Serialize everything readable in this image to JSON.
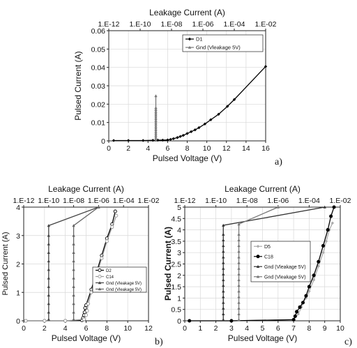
{
  "chart_data": [
    {
      "type": "line",
      "panel_label": "a)",
      "xlabel": "Pulsed Voltage (V)",
      "ylabel": "Pulsed Current (A)",
      "top_label": "Leakage Current (A)",
      "xlim": [
        0,
        16
      ],
      "ylim": [
        0,
        0.06
      ],
      "x_ticks": [
        "0",
        "2",
        "4",
        "6",
        "8",
        "10",
        "12",
        "14",
        "16"
      ],
      "y_ticks": [
        "0",
        "0.01",
        "0.02",
        "0.03",
        "0.04",
        "0.05",
        "0.06"
      ],
      "top_ticks": [
        "1.E-12",
        "1.E-10",
        "1.E-08",
        "1.E-06",
        "1.E-04",
        "1.E-02"
      ],
      "top_exp_range": [
        -12,
        -2
      ],
      "legend": {
        "placement": "top-right"
      },
      "series": [
        {
          "name": "D1",
          "axis": "bottom",
          "color": "#000000",
          "marker": "diamond",
          "x": [
            0.5,
            2.0,
            3.5,
            4.5,
            5.0,
            5.5,
            6.0,
            6.3,
            6.6,
            7.0,
            7.3,
            7.6,
            8.0,
            8.4,
            8.8,
            9.2,
            9.8,
            10.4,
            11.2,
            12.1,
            12.8,
            16.0
          ],
          "y": [
            0.0002,
            0.0002,
            0.0002,
            0.0003,
            0.0004,
            0.0004,
            0.0005,
            0.0008,
            0.0012,
            0.0018,
            0.0024,
            0.003,
            0.004,
            0.005,
            0.006,
            0.0072,
            0.0092,
            0.0115,
            0.0145,
            0.0188,
            0.0225,
            0.0405
          ]
        },
        {
          "name": "Gnd (Vleakage 5V)",
          "axis": "top",
          "color": "#777777",
          "marker": "triangle",
          "x": [
            1e-09,
            1e-09,
            1e-09,
            1e-09,
            1e-09,
            1e-09,
            1e-09,
            1e-09,
            1e-09,
            1e-09,
            1e-09,
            1e-09,
            1e-09,
            1e-09,
            1e-09,
            1e-09,
            1e-09,
            1e-09,
            1e-09,
            1e-09
          ],
          "y": [
            0.0003,
            0.001,
            0.002,
            0.003,
            0.004,
            0.005,
            0.006,
            0.007,
            0.008,
            0.009,
            0.01,
            0.011,
            0.012,
            0.013,
            0.014,
            0.015,
            0.016,
            0.017,
            0.018,
            0.0245
          ]
        }
      ]
    },
    {
      "type": "line",
      "panel_label": "b)",
      "xlabel": "Pulsed Voltage (V)",
      "ylabel": "Pulsed Current (A)",
      "top_label": "Leakage Current (A)",
      "xlim": [
        0,
        12
      ],
      "ylim": [
        0,
        4
      ],
      "x_ticks": [
        "0",
        "2",
        "4",
        "6",
        "8",
        "10",
        "12"
      ],
      "y_ticks": [
        "0",
        "1",
        "2",
        "3",
        "4"
      ],
      "top_ticks": [
        "1.E-12",
        "1.E-10",
        "1.E-08",
        "1.E-06",
        "1.E-04",
        "1.E-02"
      ],
      "top_exp_range": [
        -12,
        -2
      ],
      "legend": {
        "placement": "bottom-right"
      },
      "series": [
        {
          "name": "D2",
          "axis": "bottom",
          "color": "#000000",
          "marker": "circle-open",
          "x": [
            0.2,
            2.0,
            4.0,
            5.6,
            5.7,
            5.8,
            5.85,
            5.9,
            6.0,
            6.5,
            7.0,
            7.5,
            8.0,
            8.5,
            8.8
          ],
          "y": [
            0.0,
            0.0,
            0.0,
            0.02,
            0.1,
            0.2,
            0.3,
            0.45,
            0.55,
            1.1,
            1.7,
            2.3,
            2.9,
            3.4,
            3.85
          ]
        },
        {
          "name": "C14",
          "axis": "bottom",
          "color": "#999999",
          "marker": "circle-open",
          "x": [
            0.2,
            2.0,
            4.0,
            5.8,
            6.0,
            6.1,
            6.2,
            6.5,
            7.0,
            7.5,
            8.0,
            8.5,
            8.9
          ],
          "y": [
            0.0,
            0.0,
            0.0,
            0.05,
            0.2,
            0.35,
            0.6,
            1.0,
            1.6,
            2.2,
            2.8,
            3.3,
            3.7
          ]
        },
        {
          "name": "Gnd (Vleakage 5V)",
          "axis": "top",
          "color": "#444444",
          "marker": "triangle",
          "x": [
            1e-10,
            1e-10,
            1e-10,
            1e-10,
            1e-10,
            1e-10,
            1e-10,
            1e-10,
            1e-10,
            1e-10,
            1e-10,
            1e-10,
            1e-06
          ],
          "y": [
            0.05,
            0.3,
            0.6,
            0.9,
            1.2,
            1.5,
            1.8,
            2.1,
            2.4,
            2.7,
            3.0,
            3.35,
            4.0
          ]
        },
        {
          "name": "Gnd (Vleakage 5V)",
          "axis": "top",
          "color": "#666666",
          "marker": "triangle",
          "x": [
            1e-08,
            1e-08,
            1e-08,
            1e-08,
            1e-08,
            1e-08,
            1e-08,
            1e-08,
            1e-08,
            1e-08,
            1e-08,
            1e-08,
            1e-06
          ],
          "y": [
            0.05,
            0.3,
            0.6,
            0.9,
            1.2,
            1.5,
            1.8,
            2.1,
            2.4,
            2.7,
            3.0,
            3.35,
            4.0
          ]
        }
      ]
    },
    {
      "type": "line",
      "panel_label": "c)",
      "xlabel": "Pulsed Voltage (V)",
      "ylabel": "Pulsed Current (A)",
      "top_label": "Leakage Current (A)",
      "xlim": [
        0,
        10
      ],
      "ylim": [
        0,
        5
      ],
      "x_ticks": [
        "0",
        "1",
        "2",
        "3",
        "4",
        "5",
        "6",
        "7",
        "8",
        "9",
        "10"
      ],
      "y_ticks": [
        "0",
        "0.5",
        "1",
        "1.5",
        "2",
        "2.5",
        "3",
        "3.5",
        "4",
        "4.5",
        "5"
      ],
      "top_ticks": [
        "1.E-12",
        "1.E-10",
        "1.E-08",
        "1.E-06",
        "1.E-04",
        "1.E-02"
      ],
      "top_exp_range": [
        -12,
        -2
      ],
      "legend": {
        "placement": "center"
      },
      "series": [
        {
          "name": "D5",
          "axis": "bottom",
          "color": "#aaaaaa",
          "marker": "diamond",
          "x": [
            0.3,
            3.0,
            7.0,
            7.3,
            7.5,
            7.6,
            7.8,
            8.0,
            8.3,
            8.6,
            8.9,
            9.1,
            9.3,
            9.5
          ],
          "y": [
            0.0,
            0.0,
            0.05,
            0.3,
            0.6,
            0.8,
            1.0,
            1.3,
            1.8,
            2.4,
            3.0,
            3.5,
            4.0,
            4.3
          ]
        },
        {
          "name": "C18",
          "axis": "bottom",
          "color": "#000000",
          "marker": "circle",
          "x": [
            0.3,
            3.0,
            7.0,
            7.1,
            7.2,
            7.4,
            7.6,
            7.8,
            8.0,
            8.3,
            8.6,
            8.9,
            9.2,
            9.4,
            9.6
          ],
          "y": [
            0.0,
            0.0,
            0.05,
            0.2,
            0.4,
            0.6,
            0.8,
            1.1,
            1.5,
            2.0,
            2.6,
            3.3,
            4.0,
            4.6,
            5.0
          ]
        },
        {
          "name": "Gnd (Vleakage 5V)",
          "axis": "top",
          "color": "#333333",
          "marker": "triangle",
          "x": [
            3e-10,
            3e-10,
            3e-10,
            3e-10,
            3e-10,
            3e-10,
            3e-10,
            3e-10,
            3e-10,
            3e-10,
            3e-10,
            3e-10,
            3e-10,
            3e-10,
            3e-10,
            3e-10,
            3e-10,
            0.001
          ],
          "y": [
            0.05,
            0.3,
            0.55,
            0.8,
            1.05,
            1.3,
            1.55,
            1.8,
            2.05,
            2.3,
            2.55,
            2.8,
            3.05,
            3.3,
            3.55,
            3.8,
            4.2,
            5.0
          ]
        },
        {
          "name": "Gnd (Vleakage 5V)",
          "axis": "top",
          "color": "#777777",
          "marker": "triangle",
          "x": [
            3e-09,
            3e-09,
            3e-09,
            3e-09,
            3e-09,
            3e-09,
            3e-09,
            3e-09,
            3e-09,
            3e-09,
            3e-09,
            3e-09,
            3e-09,
            3e-09,
            3e-09,
            3e-09,
            3e-09,
            1e-06
          ],
          "y": [
            0.05,
            0.3,
            0.55,
            0.8,
            1.05,
            1.3,
            1.55,
            1.8,
            2.05,
            2.3,
            2.55,
            2.8,
            3.05,
            3.3,
            3.55,
            3.8,
            4.25,
            5.0
          ]
        }
      ]
    }
  ]
}
